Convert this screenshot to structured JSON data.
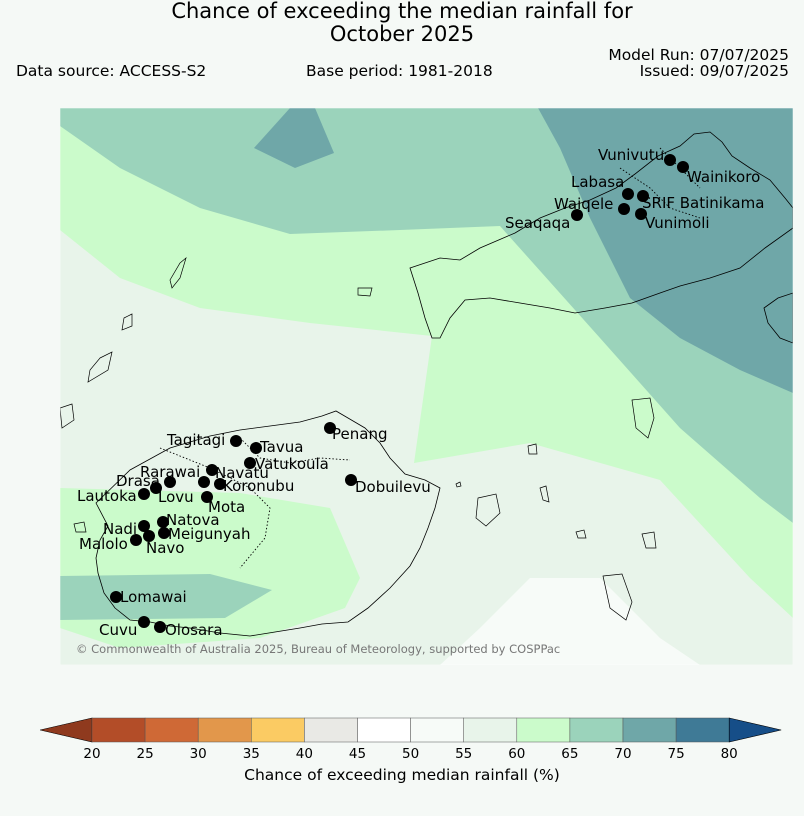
{
  "title_line1": "Chance of exceeding the median rainfall for",
  "title_line2": "October 2025",
  "data_source": "Data source: ACCESS-S2",
  "base_period": "Base period: 1981-2018",
  "model_run": "Model Run: 07/07/2025",
  "issued": "Issued: 09/07/2025",
  "copyright": "© Commonwealth of Australia 2025, Bureau of Meteorology, supported by COSPPac",
  "colorbar": {
    "label": "Chance of exceeding median rainfall (%)",
    "ticks": [
      "20",
      "25",
      "30",
      "35",
      "40",
      "45",
      "50",
      "55",
      "60",
      "65",
      "70",
      "75",
      "80"
    ],
    "colors": [
      "#b34d28",
      "#cf6936",
      "#e2974b",
      "#fbcb63",
      "#e9e9e5",
      "#ffffff",
      "#f7fbf8",
      "#e8f4ea",
      "#cbfbcb",
      "#9bd3bb",
      "#6fa7a8",
      "#3f7a96"
    ],
    "under_color": "#8f3a1e",
    "over_color": "#164e88"
  },
  "stations": [
    {
      "name": "Vunivutu"
    },
    {
      "name": "Wainikoro"
    },
    {
      "name": "Labasa"
    },
    {
      "name": "SRIF Batinikama"
    },
    {
      "name": "Waiqele"
    },
    {
      "name": "Seaqaqa"
    },
    {
      "name": "Vunimoli"
    },
    {
      "name": "Penang"
    },
    {
      "name": "Tagitagi"
    },
    {
      "name": "Tavua"
    },
    {
      "name": "Vatukoula"
    },
    {
      "name": "Rarawai"
    },
    {
      "name": "Navatu"
    },
    {
      "name": "Drasa"
    },
    {
      "name": "Koronubu"
    },
    {
      "name": "Lautoka"
    },
    {
      "name": "Lovu"
    },
    {
      "name": "Mota"
    },
    {
      "name": "Dobuilevu"
    },
    {
      "name": "Natova"
    },
    {
      "name": "Nadi"
    },
    {
      "name": "Meigunyah"
    },
    {
      "name": "Malolo"
    },
    {
      "name": "Navo"
    },
    {
      "name": "Lomawai"
    },
    {
      "name": "Cuvu"
    },
    {
      "name": "Olosara"
    }
  ]
}
